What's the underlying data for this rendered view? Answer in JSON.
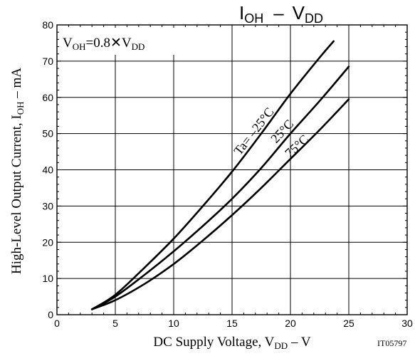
{
  "chart_data": {
    "type": "line",
    "title": "IOH - VDD",
    "title_parts": {
      "main": "I",
      "sub1": "OH",
      "dash": "–",
      "v": "V",
      "sub2": "DD"
    },
    "condition": {
      "prefix": "V",
      "sub1": "OH",
      "mid": "=0.8",
      "times": "✕",
      "v": "V",
      "sub2": "DD"
    },
    "xlabel": "DC Supply Voltage, VDD – V",
    "xlabel_parts": {
      "prefix": "DC Supply Voltage, V",
      "sub": "DD",
      "suffix": " – V"
    },
    "ylabel": "High-Level Output Current, IOH – mA",
    "ylabel_parts": {
      "prefix": "High-Level Output Current, I",
      "sub": "OH",
      "suffix": " – mA"
    },
    "figure_id": "IT05797",
    "xlim": [
      0,
      30
    ],
    "ylim": [
      0,
      80
    ],
    "xticks": [
      0,
      5,
      10,
      15,
      20,
      25,
      30
    ],
    "yticks": [
      0,
      10,
      20,
      30,
      40,
      50,
      60,
      70,
      80
    ],
    "grid": true,
    "series": [
      {
        "name": "Ta= –25°C",
        "x": [
          3,
          5,
          7.5,
          10,
          12.5,
          15,
          17.5,
          20,
          22.5,
          23.7
        ],
        "y": [
          1.5,
          5.5,
          13,
          21,
          30,
          39.5,
          50,
          61,
          71,
          75.5
        ]
      },
      {
        "name": "25°C",
        "x": [
          3,
          5,
          7.5,
          10,
          12.5,
          15,
          17.5,
          20,
          22.5,
          25
        ],
        "y": [
          1.5,
          5,
          11,
          17.5,
          24.5,
          32,
          40.5,
          50,
          59,
          68.5
        ]
      },
      {
        "name": "75°C",
        "x": [
          3,
          5,
          7.5,
          10,
          12.5,
          15,
          17.5,
          20,
          22.5,
          25
        ],
        "y": [
          1.5,
          4,
          8.5,
          14,
          20.5,
          27.5,
          35,
          43,
          51,
          59.5
        ]
      }
    ]
  }
}
